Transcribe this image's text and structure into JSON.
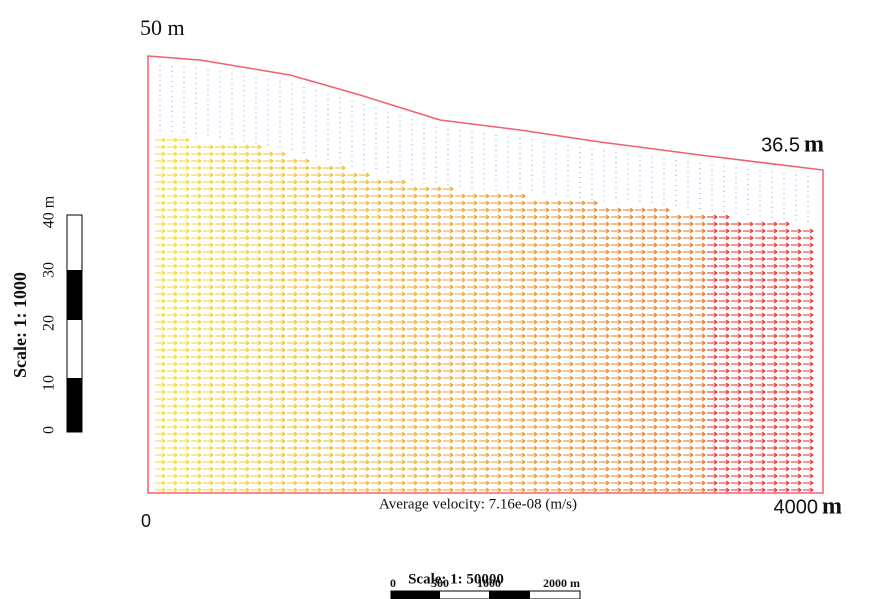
{
  "labels": {
    "top_left": "50 m",
    "top_right_value": "36.5",
    "top_right_unit": "m",
    "bottom_left": "0",
    "bottom_right_value": "4000",
    "bottom_right_unit": "m",
    "average_velocity": "Average velocity: 7.16e-08 (m/s)"
  },
  "vertical_scale": {
    "title": "Scale: 1: 1000",
    "ticks": [
      "0",
      "10",
      "20",
      "30",
      "40 m"
    ]
  },
  "horizontal_scale": {
    "title": "Scale: 1: 50000",
    "ticks": [
      "0",
      "500",
      "1000",
      "2000 m"
    ]
  }
}
